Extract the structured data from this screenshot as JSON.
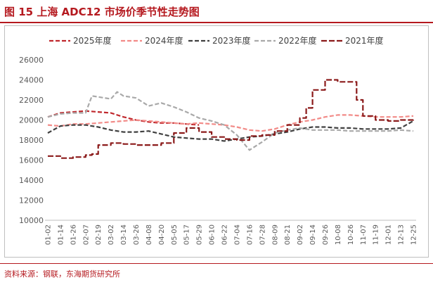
{
  "header": {
    "title": "图 15   上海 ADC12 市场价季节性走势图"
  },
  "footer": {
    "source": "资料来源：钢联，东海期货研究所"
  },
  "chart_data": {
    "type": "line",
    "title": "图 15   上海 ADC12 市场价季节性走势图",
    "xlabel": "",
    "ylabel": "",
    "ylim": [
      10000,
      26000
    ],
    "yticks": [
      10000,
      12000,
      14000,
      16000,
      18000,
      20000,
      22000,
      24000,
      26000
    ],
    "grid": false,
    "legend_position": "top",
    "x_tick_labels": [
      "01-02",
      "01-14",
      "01-26",
      "02-07",
      "02-19",
      "03-02",
      "03-14",
      "03-26",
      "04-08",
      "04-20",
      "05-05",
      "05-17",
      "05-29",
      "06-10",
      "06-22",
      "07-04",
      "07-16",
      "07-28",
      "08-09",
      "08-21",
      "09-02",
      "09-14",
      "09-26",
      "10-08",
      "10-26",
      "11-07",
      "11-19",
      "12-01",
      "12-13",
      "12-25"
    ],
    "series": [
      {
        "name": "2025年度",
        "color": "#c0282d",
        "dash": "6,3",
        "stepped": false,
        "x": [
          0,
          1,
          2,
          3,
          4,
          5,
          6,
          7,
          8,
          9,
          10,
          11,
          12
        ],
        "values": [
          20300,
          20700,
          20800,
          20900,
          20800,
          20700,
          20300,
          20000,
          19800,
          19700,
          19700,
          19600,
          19500
        ]
      },
      {
        "name": "2024年度",
        "color": "#f28b88",
        "dash": "6,3",
        "stepped": false,
        "x": [
          0,
          1,
          2,
          3,
          4,
          5,
          6,
          7,
          8,
          9,
          10,
          11,
          12,
          13,
          14,
          15,
          16,
          17,
          18,
          19,
          20,
          21,
          22,
          23,
          24,
          25,
          26,
          27,
          28,
          29
        ],
        "values": [
          19500,
          19400,
          19600,
          19600,
          19700,
          19800,
          19900,
          20000,
          19900,
          19800,
          19700,
          19600,
          19700,
          19600,
          19500,
          19300,
          19000,
          18900,
          19100,
          19500,
          19800,
          20000,
          20300,
          20500,
          20500,
          20400,
          20300,
          20300,
          20300,
          20400
        ]
      },
      {
        "name": "2023年度",
        "color": "#404040",
        "dash": "6,3",
        "stepped": false,
        "x": [
          0,
          1,
          2,
          3,
          4,
          5,
          6,
          7,
          8,
          9,
          10,
          11,
          12,
          13,
          14,
          15,
          16,
          17,
          18,
          19,
          20,
          21,
          22,
          23,
          24,
          25,
          26,
          27,
          28,
          29
        ],
        "values": [
          18700,
          19400,
          19500,
          19500,
          19300,
          19000,
          18800,
          18800,
          18900,
          18600,
          18300,
          18200,
          18100,
          18100,
          17900,
          18100,
          18300,
          18400,
          18600,
          18800,
          19100,
          19300,
          19300,
          19200,
          19200,
          19100,
          19100,
          19100,
          19200,
          19900
        ]
      },
      {
        "name": "2022年度",
        "color": "#a9a9a9",
        "dash": "6,3",
        "stepped": false,
        "x": [
          0,
          1,
          2,
          3,
          3.5,
          4,
          5,
          5.5,
          6,
          7,
          8,
          9,
          10,
          11,
          12,
          13,
          14,
          15,
          16,
          17,
          18,
          19,
          20,
          21,
          22,
          23,
          24,
          25,
          26,
          27,
          28,
          29
        ],
        "values": [
          20300,
          20600,
          20700,
          20700,
          22400,
          22300,
          22100,
          22800,
          22400,
          22200,
          21400,
          21700,
          21300,
          20800,
          20200,
          19900,
          19500,
          18500,
          17000,
          17800,
          18700,
          19000,
          19200,
          19000,
          19000,
          19000,
          18900,
          18900,
          18900,
          18900,
          19000,
          18900
        ]
      },
      {
        "name": "2021年度",
        "color": "#8b1a1a",
        "dash": "8,3",
        "stepped": true,
        "x": [
          0,
          1,
          2,
          3,
          3.5,
          4,
          5,
          6,
          7,
          8,
          9,
          10,
          11,
          12,
          13,
          14,
          15,
          16,
          17,
          18,
          19,
          20,
          20.5,
          21,
          22,
          23,
          24,
          24.5,
          25,
          26,
          27,
          28,
          29
        ],
        "values": [
          16400,
          16200,
          16300,
          16500,
          16600,
          17500,
          17700,
          17600,
          17500,
          17500,
          17700,
          18700,
          19200,
          18800,
          18300,
          18100,
          18000,
          18400,
          18500,
          18900,
          19500,
          20200,
          21200,
          23000,
          24000,
          23800,
          23800,
          22000,
          20400,
          20000,
          19900,
          20000,
          20100
        ]
      }
    ]
  }
}
